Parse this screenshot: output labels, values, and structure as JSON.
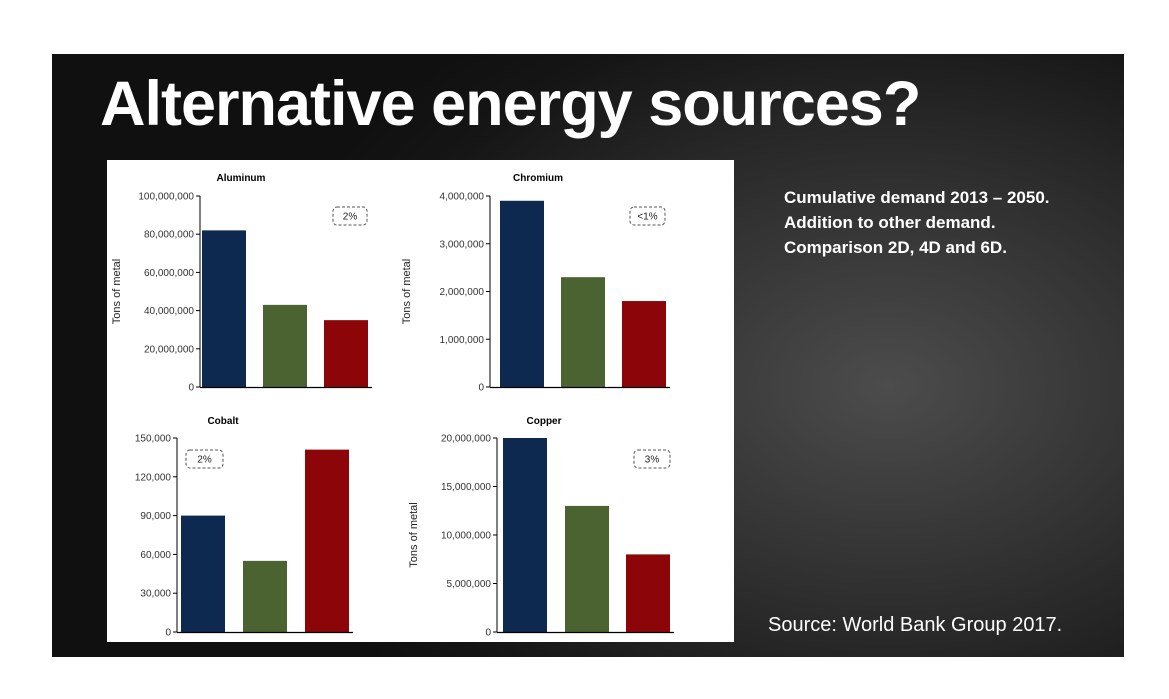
{
  "slide": {
    "title": "Alternative energy sources?",
    "notes": [
      "Cumulative demand 2013 – 2050.",
      "Addition to other demand.",
      "Comparison 2D, 4D and 6D."
    ],
    "source": "Source: World Bank Group 2017."
  },
  "colors": {
    "bar": [
      "#0e2950",
      "#4b6331",
      "#8b0509"
    ],
    "axis": "#000000",
    "slide_bg": "#2d2d2d"
  },
  "chart_data": [
    {
      "type": "bar",
      "title": "Aluminum",
      "ylabel": "Tons of metal",
      "categories": [
        "",
        "",
        ""
      ],
      "values": [
        82000000,
        43000000,
        35000000
      ],
      "ylim": [
        0,
        100000000
      ],
      "ticks": [
        0,
        20000000,
        40000000,
        60000000,
        80000000,
        100000000
      ],
      "tick_labels": [
        "0",
        "20,000,000",
        "40,000,000",
        "60,000,000",
        "80,000,000",
        "100,000,000"
      ],
      "annotation": "2%",
      "annotation_position": "top-right",
      "grid": false
    },
    {
      "type": "bar",
      "title": "Chromium",
      "ylabel": "Tons of metal",
      "categories": [
        "",
        "",
        ""
      ],
      "values": [
        3900000,
        2300000,
        1800000
      ],
      "ylim": [
        0,
        4000000
      ],
      "ticks": [
        0,
        1000000,
        2000000,
        3000000,
        4000000
      ],
      "tick_labels": [
        "0",
        "1,000,000",
        "2,000,000",
        "3,000,000",
        "4,000,000"
      ],
      "annotation": "<1%",
      "annotation_position": "top-right",
      "grid": false
    },
    {
      "type": "bar",
      "title": "Cobalt",
      "ylabel": "Tons of metal",
      "categories": [
        "",
        "",
        ""
      ],
      "values": [
        90000,
        55000,
        141000
      ],
      "ylim": [
        0,
        150000
      ],
      "ticks": [
        0,
        30000,
        60000,
        90000,
        120000,
        150000
      ],
      "tick_labels": [
        "0",
        "30,000",
        "60,000",
        "90,000",
        "120,000",
        "150,000"
      ],
      "annotation": "2%",
      "annotation_position": "top-left",
      "grid": false
    },
    {
      "type": "bar",
      "title": "Copper",
      "ylabel": "Tons of metal",
      "categories": [
        "",
        "",
        ""
      ],
      "values": [
        20000000,
        13000000,
        8000000
      ],
      "ylim": [
        0,
        20000000
      ],
      "ticks": [
        0,
        5000000,
        10000000,
        15000000,
        20000000
      ],
      "tick_labels": [
        "0",
        "5,000,000",
        "10,000,000",
        "15,000,000",
        "20,000,000"
      ],
      "annotation": "3%",
      "annotation_position": "top-right",
      "grid": false
    }
  ]
}
